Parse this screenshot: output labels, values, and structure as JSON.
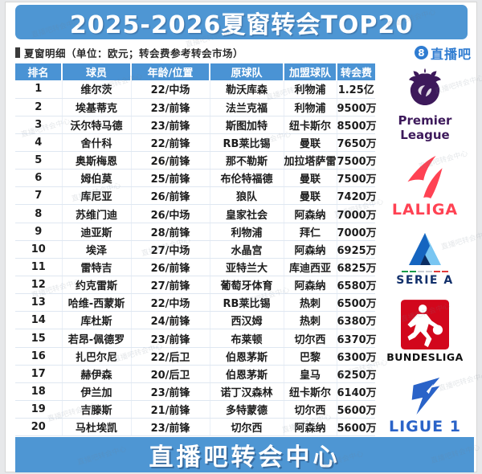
{
  "banner": {
    "title": "2025-2026夏窗转会TOP20"
  },
  "subtitle": {
    "text": "夏窗明细（单位：欧元；转会费参考转会市场）"
  },
  "site_logo": {
    "number": "8",
    "text": "直播吧"
  },
  "table": {
    "headers": [
      "排名",
      "球员",
      "年龄/位置",
      "原球队",
      "加盟球队",
      "转会费"
    ],
    "rows": [
      [
        "1",
        "维尔茨",
        "22/中场",
        "勒沃库森",
        "利物浦",
        "1.25亿"
      ],
      [
        "2",
        "埃基蒂克",
        "23/前锋",
        "法兰克福",
        "利物浦",
        "9500万"
      ],
      [
        "3",
        "沃尔特马德",
        "23/前锋",
        "斯图加特",
        "纽卡斯尔",
        "8500万"
      ],
      [
        "4",
        "舍什科",
        "22/前锋",
        "RB莱比锡",
        "曼联",
        "7650万"
      ],
      [
        "5",
        "奥斯梅恩",
        "26/前锋",
        "那不勒斯",
        "加拉塔萨雷",
        "7500万"
      ],
      [
        "6",
        "姆伯莫",
        "25/前锋",
        "布伦特福德",
        "曼联",
        "7500万"
      ],
      [
        "7",
        "库尼亚",
        "26/前锋",
        "狼队",
        "曼联",
        "7420万"
      ],
      [
        "8",
        "苏维门迪",
        "26/中场",
        "皇家社会",
        "阿森纳",
        "7000万"
      ],
      [
        "9",
        "迪亚斯",
        "28/前锋",
        "利物浦",
        "拜仁",
        "7000万"
      ],
      [
        "10",
        "埃泽",
        "27/中场",
        "水晶宫",
        "阿森纳",
        "6925万"
      ],
      [
        "11",
        "雷特吉",
        "26/前锋",
        "亚特兰大",
        "库迪西亚",
        "6825万"
      ],
      [
        "12",
        "约克雷斯",
        "27/前锋",
        "葡萄牙体育",
        "阿森纳",
        "6580万"
      ],
      [
        "13",
        "哈维-西蒙斯",
        "22/中场",
        "RB莱比锡",
        "热刺",
        "6500万"
      ],
      [
        "14",
        "库杜斯",
        "24/前锋",
        "西汉姆",
        "热刺",
        "6380万"
      ],
      [
        "15",
        "若昂-佩德罗",
        "23/前锋",
        "布莱顿",
        "切尔西",
        "6370万"
      ],
      [
        "16",
        "扎巴尔尼",
        "22/后卫",
        "伯恩茅斯",
        "巴黎",
        "6300万"
      ],
      [
        "17",
        "赫伊森",
        "20/后卫",
        "伯恩茅斯",
        "皇马",
        "6250万"
      ],
      [
        "18",
        "伊兰加",
        "23/前锋",
        "诺丁汉森林",
        "纽卡斯尔",
        "6140万"
      ],
      [
        "19",
        "吉滕斯",
        "21/前锋",
        "多特蒙德",
        "切尔西",
        "5600万"
      ],
      [
        "20",
        "马杜埃凯",
        "23/前锋",
        "切尔西",
        "阿森纳",
        "5600万"
      ]
    ]
  },
  "leagues": [
    {
      "name": "Premier League",
      "line1": "Premier",
      "line2": "League",
      "color": "#3d195b"
    },
    {
      "name": "LaLiga",
      "label": "LALIGA",
      "color": "#ff4253"
    },
    {
      "name": "Serie A",
      "label": "SERIE A",
      "color": "#12306b"
    },
    {
      "name": "Bundesliga",
      "label": "BUNDESLIGA",
      "color": "#d2071c"
    },
    {
      "name": "Ligue 1",
      "label": "LIGUE 1",
      "color": "#2a63c8"
    }
  ],
  "footer": {
    "text": "直播吧转会中心"
  },
  "watermark": {
    "text": "直播吧转会中心"
  },
  "colors": {
    "banner_blue": "#4e96d3",
    "header_blue": "#4a93d4",
    "site_blue": "#2f7cd1",
    "row_border": "#dfe7f1"
  }
}
